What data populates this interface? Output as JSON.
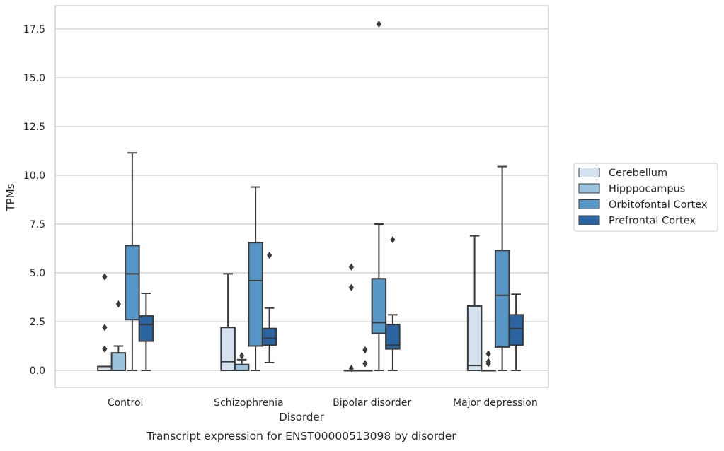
{
  "chart_data": {
    "type": "box",
    "title": "Transcript expression for ENST00000513098 by disorder",
    "xlabel": "Disorder",
    "ylabel": "TPMs",
    "ylim": [
      -0.85,
      18.6
    ],
    "yticks": [
      0.0,
      2.5,
      5.0,
      7.5,
      10.0,
      12.5,
      15.0,
      17.5
    ],
    "ytick_labels": [
      "0.0",
      "2.5",
      "5.0",
      "7.5",
      "10.0",
      "12.5",
      "15.0",
      "17.5"
    ],
    "grid": "horizontal",
    "legend_position": "right",
    "categories": [
      "Control",
      "Schizophrenia",
      "Bipolar disorder",
      "Major depression"
    ],
    "series": [
      {
        "name": "Cerebellum",
        "color": "#d4e2f0",
        "boxes": [
          {
            "category": "Control",
            "whislo": 0.0,
            "q1": 0.0,
            "median": 0.2,
            "q3": 0.2,
            "whishi": 0.2,
            "fliers": [
              1.1,
              2.2,
              4.8
            ]
          },
          {
            "category": "Schizophrenia",
            "whislo": 0.0,
            "q1": 0.0,
            "median": 0.45,
            "q3": 2.2,
            "whishi": 4.95,
            "fliers": []
          },
          {
            "category": "Bipolar disorder",
            "whislo": 0.0,
            "q1": 0.0,
            "median": 0.0,
            "q3": 0.0,
            "whishi": 0.0,
            "fliers": [
              0.1,
              4.25,
              5.3
            ]
          },
          {
            "category": "Major depression",
            "whislo": 0.0,
            "q1": 0.0,
            "median": 0.25,
            "q3": 3.3,
            "whishi": 6.9,
            "fliers": []
          }
        ]
      },
      {
        "name": "Hipppocampus",
        "color": "#9ac3df",
        "boxes": [
          {
            "category": "Control",
            "whislo": 0.0,
            "q1": 0.0,
            "median": 0.0,
            "q3": 0.9,
            "whishi": 1.25,
            "fliers": [
              3.4
            ]
          },
          {
            "category": "Schizophrenia",
            "whislo": 0.0,
            "q1": 0.0,
            "median": 0.0,
            "q3": 0.3,
            "whishi": 0.55,
            "fliers": [
              0.75
            ]
          },
          {
            "category": "Bipolar disorder",
            "whislo": 0.0,
            "q1": 0.0,
            "median": 0.0,
            "q3": 0.0,
            "whishi": 0.0,
            "fliers": [
              0.35,
              1.05
            ]
          },
          {
            "category": "Major depression",
            "whislo": 0.0,
            "q1": 0.0,
            "median": 0.0,
            "q3": 0.0,
            "whishi": 0.0,
            "fliers": [
              0.35,
              0.45,
              0.85
            ]
          }
        ]
      },
      {
        "name": "Orbitofontal Cortex",
        "color": "#5797c7",
        "boxes": [
          {
            "category": "Control",
            "whislo": 0.0,
            "q1": 2.6,
            "median": 4.95,
            "q3": 6.4,
            "whishi": 11.15,
            "fliers": []
          },
          {
            "category": "Schizophrenia",
            "whislo": 0.0,
            "q1": 1.25,
            "median": 4.6,
            "q3": 6.55,
            "whishi": 9.4,
            "fliers": []
          },
          {
            "category": "Bipolar disorder",
            "whislo": 0.0,
            "q1": 1.9,
            "median": 2.45,
            "q3": 4.7,
            "whishi": 7.5,
            "fliers": [
              17.75
            ]
          },
          {
            "category": "Major depression",
            "whislo": 0.0,
            "q1": 1.2,
            "median": 3.85,
            "q3": 6.15,
            "whishi": 10.45,
            "fliers": []
          }
        ]
      },
      {
        "name": "Prefrontal Cortex",
        "color": "#2a65a2",
        "boxes": [
          {
            "category": "Control",
            "whislo": 0.0,
            "q1": 1.5,
            "median": 2.35,
            "q3": 2.8,
            "whishi": 3.95,
            "fliers": []
          },
          {
            "category": "Schizophrenia",
            "whislo": 0.4,
            "q1": 1.3,
            "median": 1.65,
            "q3": 2.15,
            "whishi": 3.2,
            "fliers": [
              5.9
            ]
          },
          {
            "category": "Bipolar disorder",
            "whislo": 0.0,
            "q1": 1.1,
            "median": 1.3,
            "q3": 2.35,
            "whishi": 2.85,
            "fliers": [
              6.7
            ]
          },
          {
            "category": "Major depression",
            "whislo": 0.0,
            "q1": 1.3,
            "median": 2.15,
            "q3": 2.85,
            "whishi": 3.9,
            "fliers": []
          }
        ]
      }
    ]
  }
}
